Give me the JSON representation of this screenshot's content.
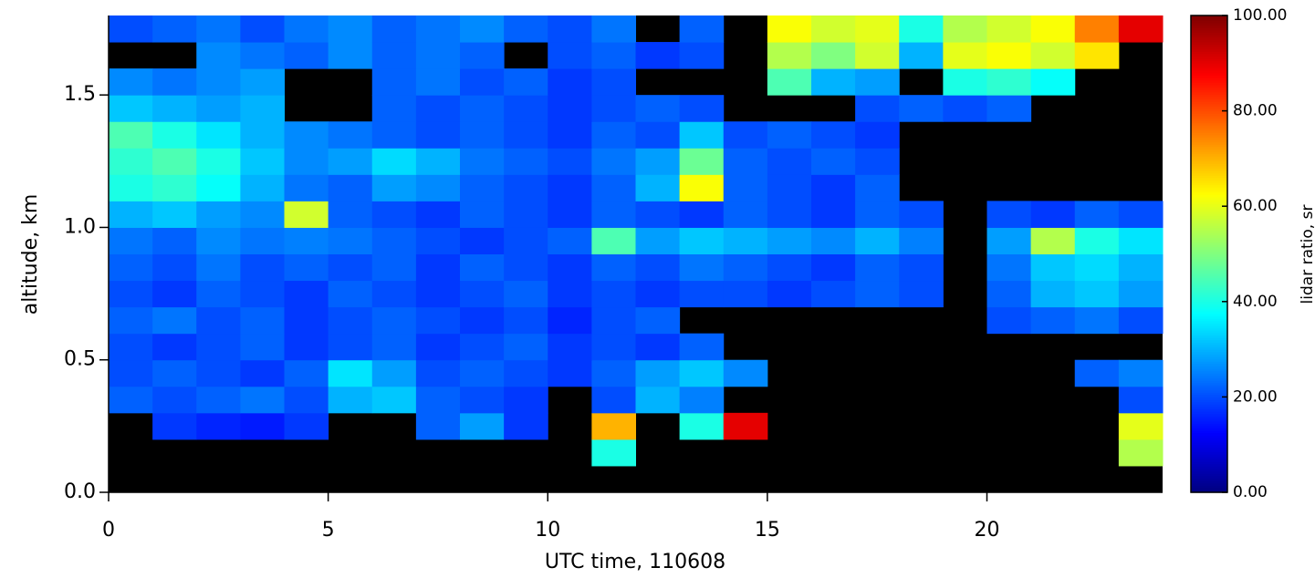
{
  "chart_data": {
    "type": "heatmap",
    "xlabel": "UTC time, 110608",
    "ylabel": "altitude, km",
    "colorbar_label": "lidar ratio, sr",
    "colormap": "jet",
    "missing_color": "#000000",
    "xlim": [
      0,
      24
    ],
    "ylim": [
      0,
      1.8
    ],
    "xticks": [
      0,
      5,
      10,
      15,
      20
    ],
    "yticks": [
      {
        "value": 0,
        "label": "0.0"
      },
      0.5,
      {
        "value": 1,
        "label": "1.0"
      },
      1.5
    ],
    "zlim": [
      0,
      100
    ],
    "zticks": [
      {
        "value": 0,
        "label": "0.00"
      },
      {
        "value": 20,
        "label": "20.00"
      },
      {
        "value": 40,
        "label": "40.00"
      },
      {
        "value": 60,
        "label": "60.00"
      },
      {
        "value": 80,
        "label": "80.00"
      },
      {
        "value": 100,
        "label": "100.00"
      }
    ],
    "xbins": [
      0,
      1,
      2,
      3,
      4,
      5,
      6,
      7,
      8,
      9,
      10,
      11,
      12,
      13,
      14,
      15,
      16,
      17,
      18,
      19,
      20,
      21,
      22,
      23,
      24
    ],
    "ybins": [
      0,
      0.1,
      0.2,
      0.3,
      0.4,
      0.5,
      0.6,
      0.7,
      0.8,
      0.9,
      1.0,
      1.1,
      1.2,
      1.3,
      1.4,
      1.5,
      1.6,
      1.7,
      1.8
    ],
    "values": [
      [
        null,
        null,
        null,
        null,
        null,
        null,
        null,
        null,
        null,
        null,
        null,
        null,
        null,
        null,
        null,
        null,
        null,
        null,
        null,
        null,
        null,
        null,
        null,
        null
      ],
      [
        null,
        null,
        null,
        null,
        null,
        null,
        null,
        null,
        null,
        null,
        null,
        40,
        null,
        null,
        null,
        null,
        null,
        null,
        null,
        null,
        null,
        null,
        null,
        55
      ],
      [
        null,
        18,
        16,
        15,
        18,
        null,
        null,
        22,
        28,
        18,
        null,
        70,
        null,
        40,
        90,
        null,
        null,
        null,
        null,
        null,
        null,
        null,
        null,
        60
      ],
      [
        22,
        20,
        22,
        24,
        20,
        30,
        32,
        22,
        20,
        18,
        null,
        20,
        30,
        25,
        null,
        null,
        null,
        null,
        null,
        null,
        null,
        null,
        null,
        20
      ],
      [
        20,
        22,
        20,
        18,
        22,
        35,
        28,
        20,
        22,
        20,
        18,
        22,
        28,
        32,
        26,
        null,
        null,
        null,
        null,
        null,
        null,
        null,
        22,
        25
      ],
      [
        20,
        18,
        20,
        22,
        18,
        20,
        22,
        18,
        20,
        22,
        18,
        20,
        18,
        22,
        null,
        null,
        null,
        null,
        null,
        null,
        null,
        null,
        null,
        null
      ],
      [
        22,
        24,
        20,
        22,
        18,
        20,
        22,
        20,
        18,
        20,
        16,
        20,
        22,
        null,
        null,
        null,
        null,
        null,
        null,
        null,
        20,
        22,
        24,
        20
      ],
      [
        20,
        18,
        22,
        20,
        18,
        22,
        20,
        18,
        20,
        22,
        18,
        20,
        18,
        20,
        20,
        18,
        20,
        22,
        20,
        null,
        22,
        30,
        32,
        28
      ],
      [
        22,
        20,
        24,
        20,
        22,
        20,
        22,
        18,
        22,
        20,
        18,
        22,
        20,
        24,
        22,
        20,
        18,
        22,
        20,
        null,
        24,
        32,
        34,
        30
      ],
      [
        24,
        22,
        26,
        24,
        25,
        24,
        22,
        20,
        18,
        20,
        22,
        45,
        28,
        32,
        30,
        28,
        26,
        30,
        25,
        null,
        28,
        55,
        40,
        35
      ],
      [
        30,
        32,
        28,
        26,
        58,
        22,
        20,
        18,
        22,
        20,
        18,
        22,
        20,
        18,
        22,
        20,
        18,
        22,
        20,
        null,
        20,
        18,
        22,
        20
      ],
      [
        40,
        42,
        38,
        30,
        24,
        22,
        28,
        26,
        22,
        20,
        18,
        22,
        30,
        62,
        22,
        20,
        18,
        22,
        null,
        null,
        null,
        null,
        null,
        null
      ],
      [
        42,
        45,
        40,
        32,
        26,
        28,
        34,
        30,
        24,
        22,
        20,
        24,
        28,
        48,
        22,
        20,
        22,
        20,
        null,
        null,
        null,
        null,
        null,
        null
      ],
      [
        45,
        40,
        35,
        30,
        26,
        24,
        22,
        20,
        22,
        20,
        18,
        22,
        20,
        32,
        20,
        22,
        20,
        18,
        null,
        null,
        null,
        null,
        null,
        null
      ],
      [
        32,
        30,
        28,
        30,
        null,
        null,
        22,
        20,
        22,
        20,
        18,
        20,
        22,
        20,
        null,
        null,
        null,
        20,
        22,
        20,
        22,
        null,
        null,
        null
      ],
      [
        26,
        24,
        26,
        28,
        null,
        null,
        22,
        24,
        20,
        22,
        18,
        20,
        null,
        null,
        null,
        45,
        30,
        28,
        null,
        40,
        42,
        38,
        null,
        null
      ],
      [
        null,
        null,
        26,
        24,
        22,
        26,
        22,
        24,
        22,
        null,
        20,
        22,
        18,
        20,
        null,
        55,
        50,
        58,
        30,
        60,
        62,
        58,
        65,
        null
      ],
      [
        20,
        22,
        24,
        20,
        24,
        26,
        22,
        24,
        26,
        22,
        20,
        24,
        null,
        22,
        null,
        62,
        58,
        60,
        40,
        55,
        58,
        62,
        75,
        90
      ]
    ]
  }
}
